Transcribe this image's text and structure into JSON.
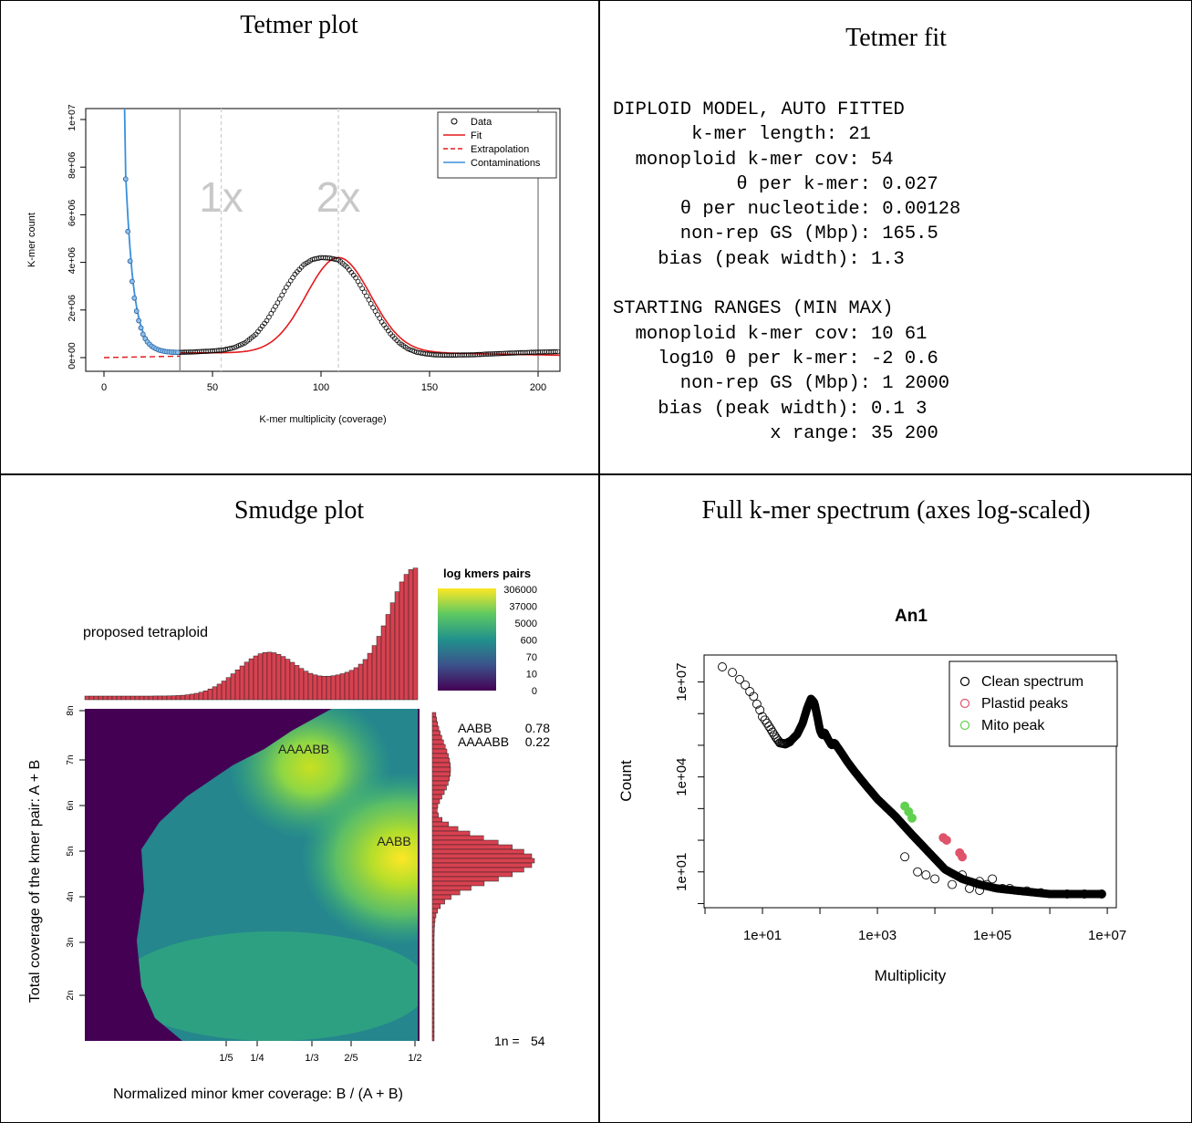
{
  "panels": {
    "tetmer_plot_title": "Tetmer plot",
    "tetmer_fit_title": "Tetmer fit",
    "smudge_title": "Smudge plot",
    "spectrum_title": "Full k-mer spectrum (axes log-scaled)"
  },
  "tetmer_fit": {
    "lines": [
      "DIPLOID MODEL, AUTO FITTED",
      "       k-mer length: 21",
      "  monoploid k-mer cov: 54",
      "           θ per k-mer: 0.027",
      "      θ per nucleotide: 0.00128",
      "      non-rep GS (Mbp): 165.5",
      "    bias (peak width): 1.3",
      "",
      "STARTING RANGES (MIN MAX)",
      "  monoploid k-mer cov: 10 61",
      "    log10 θ per k-mer: -2 0.6",
      "      non-rep GS (Mbp): 1 2000",
      "    bias (peak width): 0.1 3",
      "              x range: 35 200"
    ]
  },
  "chart_data": [
    {
      "id": "tetmer",
      "type": "line",
      "title": "",
      "xlabel": "K-mer multiplicity (coverage)",
      "ylabel": "K-mer count",
      "xlim": [
        0,
        210
      ],
      "ylim": [
        0,
        10500000
      ],
      "x_ticks": [
        0,
        50,
        100,
        150,
        200
      ],
      "y_ticks": [
        0,
        2000000,
        4000000,
        6000000,
        8000000,
        10000000
      ],
      "y_tick_labels": [
        "0e+00",
        "2e+06",
        "4e+06",
        "6e+06",
        "8e+06",
        "1e+07"
      ],
      "legend": {
        "position": "top-right",
        "entries": [
          "Data",
          "Fit",
          "Extrapolation",
          "Contaminations"
        ]
      },
      "vlines_solid": [
        35,
        200
      ],
      "vlines_dashed": [
        54,
        108
      ],
      "annotations": [
        {
          "text": "1x",
          "x": 54
        },
        {
          "text": "2x",
          "x": 108
        }
      ],
      "colors": {
        "data": "#000000",
        "fit": "#e31a1c",
        "extrapolation": "#e31a1c",
        "contaminations": "#3a8fdc"
      },
      "data_points": {
        "x": [
          10,
          11,
          12,
          13,
          14,
          15,
          16,
          17,
          18,
          19,
          20,
          21,
          22,
          23,
          24,
          25,
          26,
          27,
          28,
          29,
          30,
          31,
          32,
          33,
          34,
          35,
          40,
          45,
          50,
          55,
          60,
          65,
          70,
          75,
          80,
          84,
          88,
          92,
          96,
          100,
          104,
          108,
          112,
          116,
          120,
          124,
          128,
          132,
          136,
          140,
          144,
          148,
          152,
          156,
          160,
          165,
          170,
          175,
          180,
          185,
          190,
          195,
          200,
          205,
          209
        ],
        "y": [
          7500000,
          5300000,
          4050000,
          3200000,
          2500000,
          1950000,
          1550000,
          1250000,
          980000,
          800000,
          660000,
          560000,
          480000,
          420000,
          370000,
          330000,
          300000,
          280000,
          260000,
          250000,
          240000,
          230000,
          225000,
          222000,
          220000,
          220000,
          235000,
          255000,
          280000,
          320000,
          420000,
          620000,
          980000,
          1550000,
          2300000,
          2950000,
          3500000,
          3900000,
          4120000,
          4200000,
          4180000,
          4100000,
          3800000,
          3350000,
          2750000,
          2100000,
          1500000,
          1000000,
          620000,
          370000,
          230000,
          160000,
          120000,
          105000,
          100000,
          110000,
          120000,
          140000,
          160000,
          180000,
          200000,
          215000,
          230000,
          240000,
          250000
        ]
      }
    },
    {
      "id": "smudge",
      "type": "heatmap",
      "title": "",
      "xlabel": "Normalized minor kmer coverage: B / (A + B)",
      "ylabel": "Total coverage of the kmer pair: A + B",
      "x_tick_labels": [
        "1/5",
        "1/4",
        "1/3",
        "2/5",
        "1/2"
      ],
      "x_ticks": [
        0.2,
        0.25,
        0.333,
        0.4,
        0.5
      ],
      "y_tick_labels": [
        "2n",
        "3n",
        "4n",
        "5n",
        "6n",
        "7n",
        "8n"
      ],
      "legend_title": "log kmers pairs",
      "legend_ticks": [
        "306000",
        "37000",
        "5000",
        "600",
        "70",
        "10",
        "0"
      ],
      "annotation": "proposed tetraploid",
      "smudges": [
        {
          "label": "AAAABB",
          "x": 0.333,
          "y_n": 6,
          "proportion": 0.22
        },
        {
          "label": "AABB",
          "x": 0.5,
          "y_n": 4,
          "proportion": 0.78
        }
      ],
      "proportions": [
        {
          "label": "AABB",
          "value": "0.78"
        },
        {
          "label": "AAAABB",
          "value": "0.22"
        }
      ],
      "n_label": "1n = ",
      "n_value": "54",
      "colors": {
        "hist": "#d84150",
        "low": "#440154",
        "mid": "#21918c",
        "high": "#fde725"
      }
    },
    {
      "id": "spectrum",
      "type": "scatter",
      "title": "An1",
      "xlabel": "Multiplicity",
      "ylabel": "Count",
      "x_scale": "log",
      "y_scale": "log",
      "x_ticks": [
        10,
        1000,
        100000,
        10000000
      ],
      "x_tick_labels": [
        "1e+01",
        "1e+03",
        "1e+05",
        "1e+07"
      ],
      "y_ticks": [
        10,
        10000,
        10000000
      ],
      "y_tick_labels": [
        "1e+01",
        "1e+04",
        "1e+07"
      ],
      "legend": {
        "position": "top-right",
        "entries": [
          "Clean spectrum",
          "Plastid peaks",
          "Mito peak"
        ]
      },
      "colors": {
        "clean": "#000000",
        "plastid": "#df536b",
        "mito": "#61d04f"
      },
      "series": [
        {
          "name": "Clean spectrum",
          "x": [
            2,
            3,
            4,
            5,
            6,
            7,
            8,
            9,
            10,
            12,
            14,
            17,
            20,
            25,
            30,
            40,
            50,
            60,
            70,
            80,
            90,
            100,
            110,
            120,
            140,
            160,
            180,
            200,
            250,
            300,
            400,
            600,
            1000,
            2000,
            4000,
            8000,
            15000,
            30000,
            60000,
            120000,
            300000,
            1000000,
            3000000,
            8000000
          ],
          "y": [
            30000000,
            20000000,
            12000000,
            8000000,
            5000000,
            3500000,
            2000000,
            1300000,
            800000,
            500000,
            320000,
            180000,
            120000,
            110000,
            130000,
            220000,
            500000,
            1500000,
            3000000,
            2200000,
            800000,
            300000,
            200000,
            260000,
            150000,
            100000,
            120000,
            90000,
            50000,
            30000,
            15000,
            6000,
            2000,
            600,
            150,
            40,
            12,
            6,
            4,
            3,
            2.5,
            2,
            2,
            2
          ]
        },
        {
          "name": "Plastid peaks",
          "x": [
            14000,
            16000,
            27000,
            30000
          ],
          "y": [
            120,
            100,
            40,
            30
          ]
        },
        {
          "name": "Mito peak",
          "x": [
            3000,
            3500,
            4000
          ],
          "y": [
            1200,
            800,
            500
          ]
        }
      ]
    }
  ]
}
